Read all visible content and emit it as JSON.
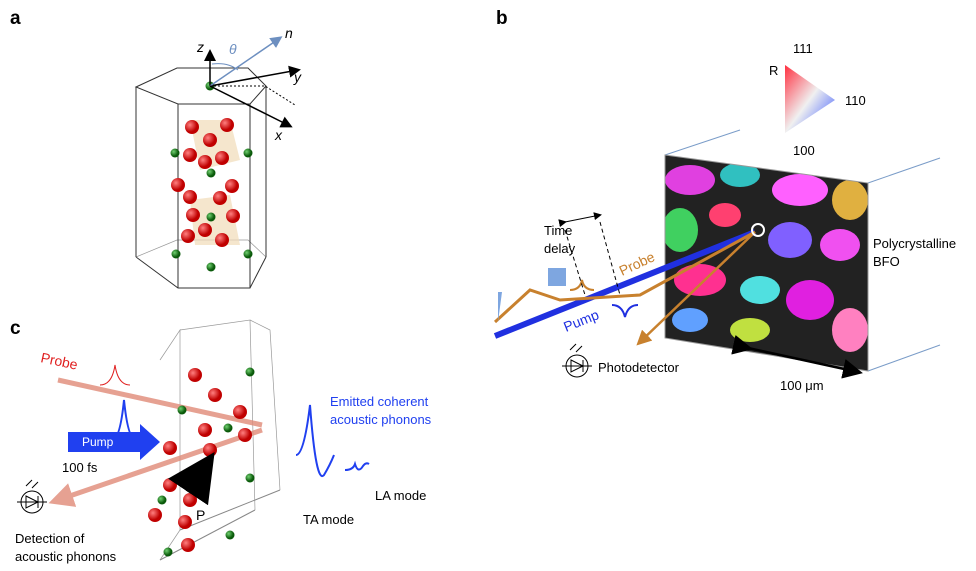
{
  "panels": {
    "a": {
      "label": "a",
      "axes": {
        "z": "z",
        "theta": "θ",
        "n": "n",
        "y": "y",
        "x": "x"
      }
    },
    "b": {
      "label": "b",
      "legend": {
        "top": "111",
        "left": "R",
        "right": "110",
        "bottom": "100"
      },
      "time_delay": [
        "Time",
        "delay"
      ],
      "probe": "Probe",
      "pump": "Pump",
      "sample": [
        "Polycrystalline",
        "BFO"
      ],
      "scale": "100 μm",
      "detector": "Photodetector"
    },
    "c": {
      "label": "c",
      "probe": "Probe",
      "pump": "Pump",
      "pulse": "100 fs",
      "polarization": "P",
      "emitted": [
        "Emitted coherent",
        "acoustic phonons"
      ],
      "la_mode": "LA mode",
      "ta_mode": "TA mode",
      "detection": [
        "Detection of",
        "acoustic phonons"
      ]
    }
  }
}
